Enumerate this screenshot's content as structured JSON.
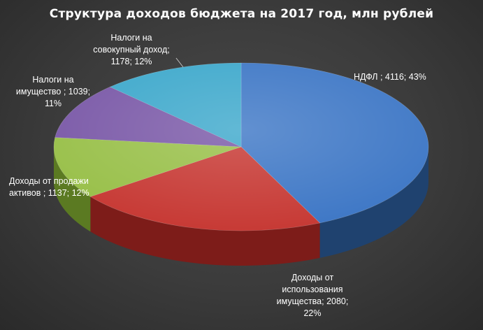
{
  "chart_data": {
    "type": "pie",
    "title": "Структура доходов бюджета на 2017 год, млн рублей",
    "unit": "млн рублей",
    "slices": [
      {
        "label": "НДФЛ",
        "value": 4116,
        "percent": "43%",
        "color": "#3f78c6",
        "side_color": "#1f426f",
        "text": "НДФЛ ; 4116; 43%"
      },
      {
        "label": "Доходы от использования имущества",
        "value": 2080,
        "percent": "22%",
        "color": "#c73a35",
        "side_color": "#7d1c19",
        "text": "Доходы от использования имущества; 2080; 22%"
      },
      {
        "label": "Доходы от продажи активов",
        "value": 1137,
        "percent": "12%",
        "color": "#99c04a",
        "side_color": "#5b7a22",
        "text": "Доходы от продажи активов ; 1137; 12%"
      },
      {
        "label": "Налоги на имущество",
        "value": 1039,
        "percent": "11%",
        "color": "#7b5aa8",
        "side_color": "#4b3470",
        "text": "Налоги на имущество ; 1039; 11%"
      },
      {
        "label": "Налоги на совокупный доход",
        "value": 1178,
        "percent": "12%",
        "color": "#3fa9cc",
        "side_color": "#1f6c86",
        "text": "Налоги на совокупный доход; 1178; 12%"
      }
    ],
    "legend": "none"
  }
}
